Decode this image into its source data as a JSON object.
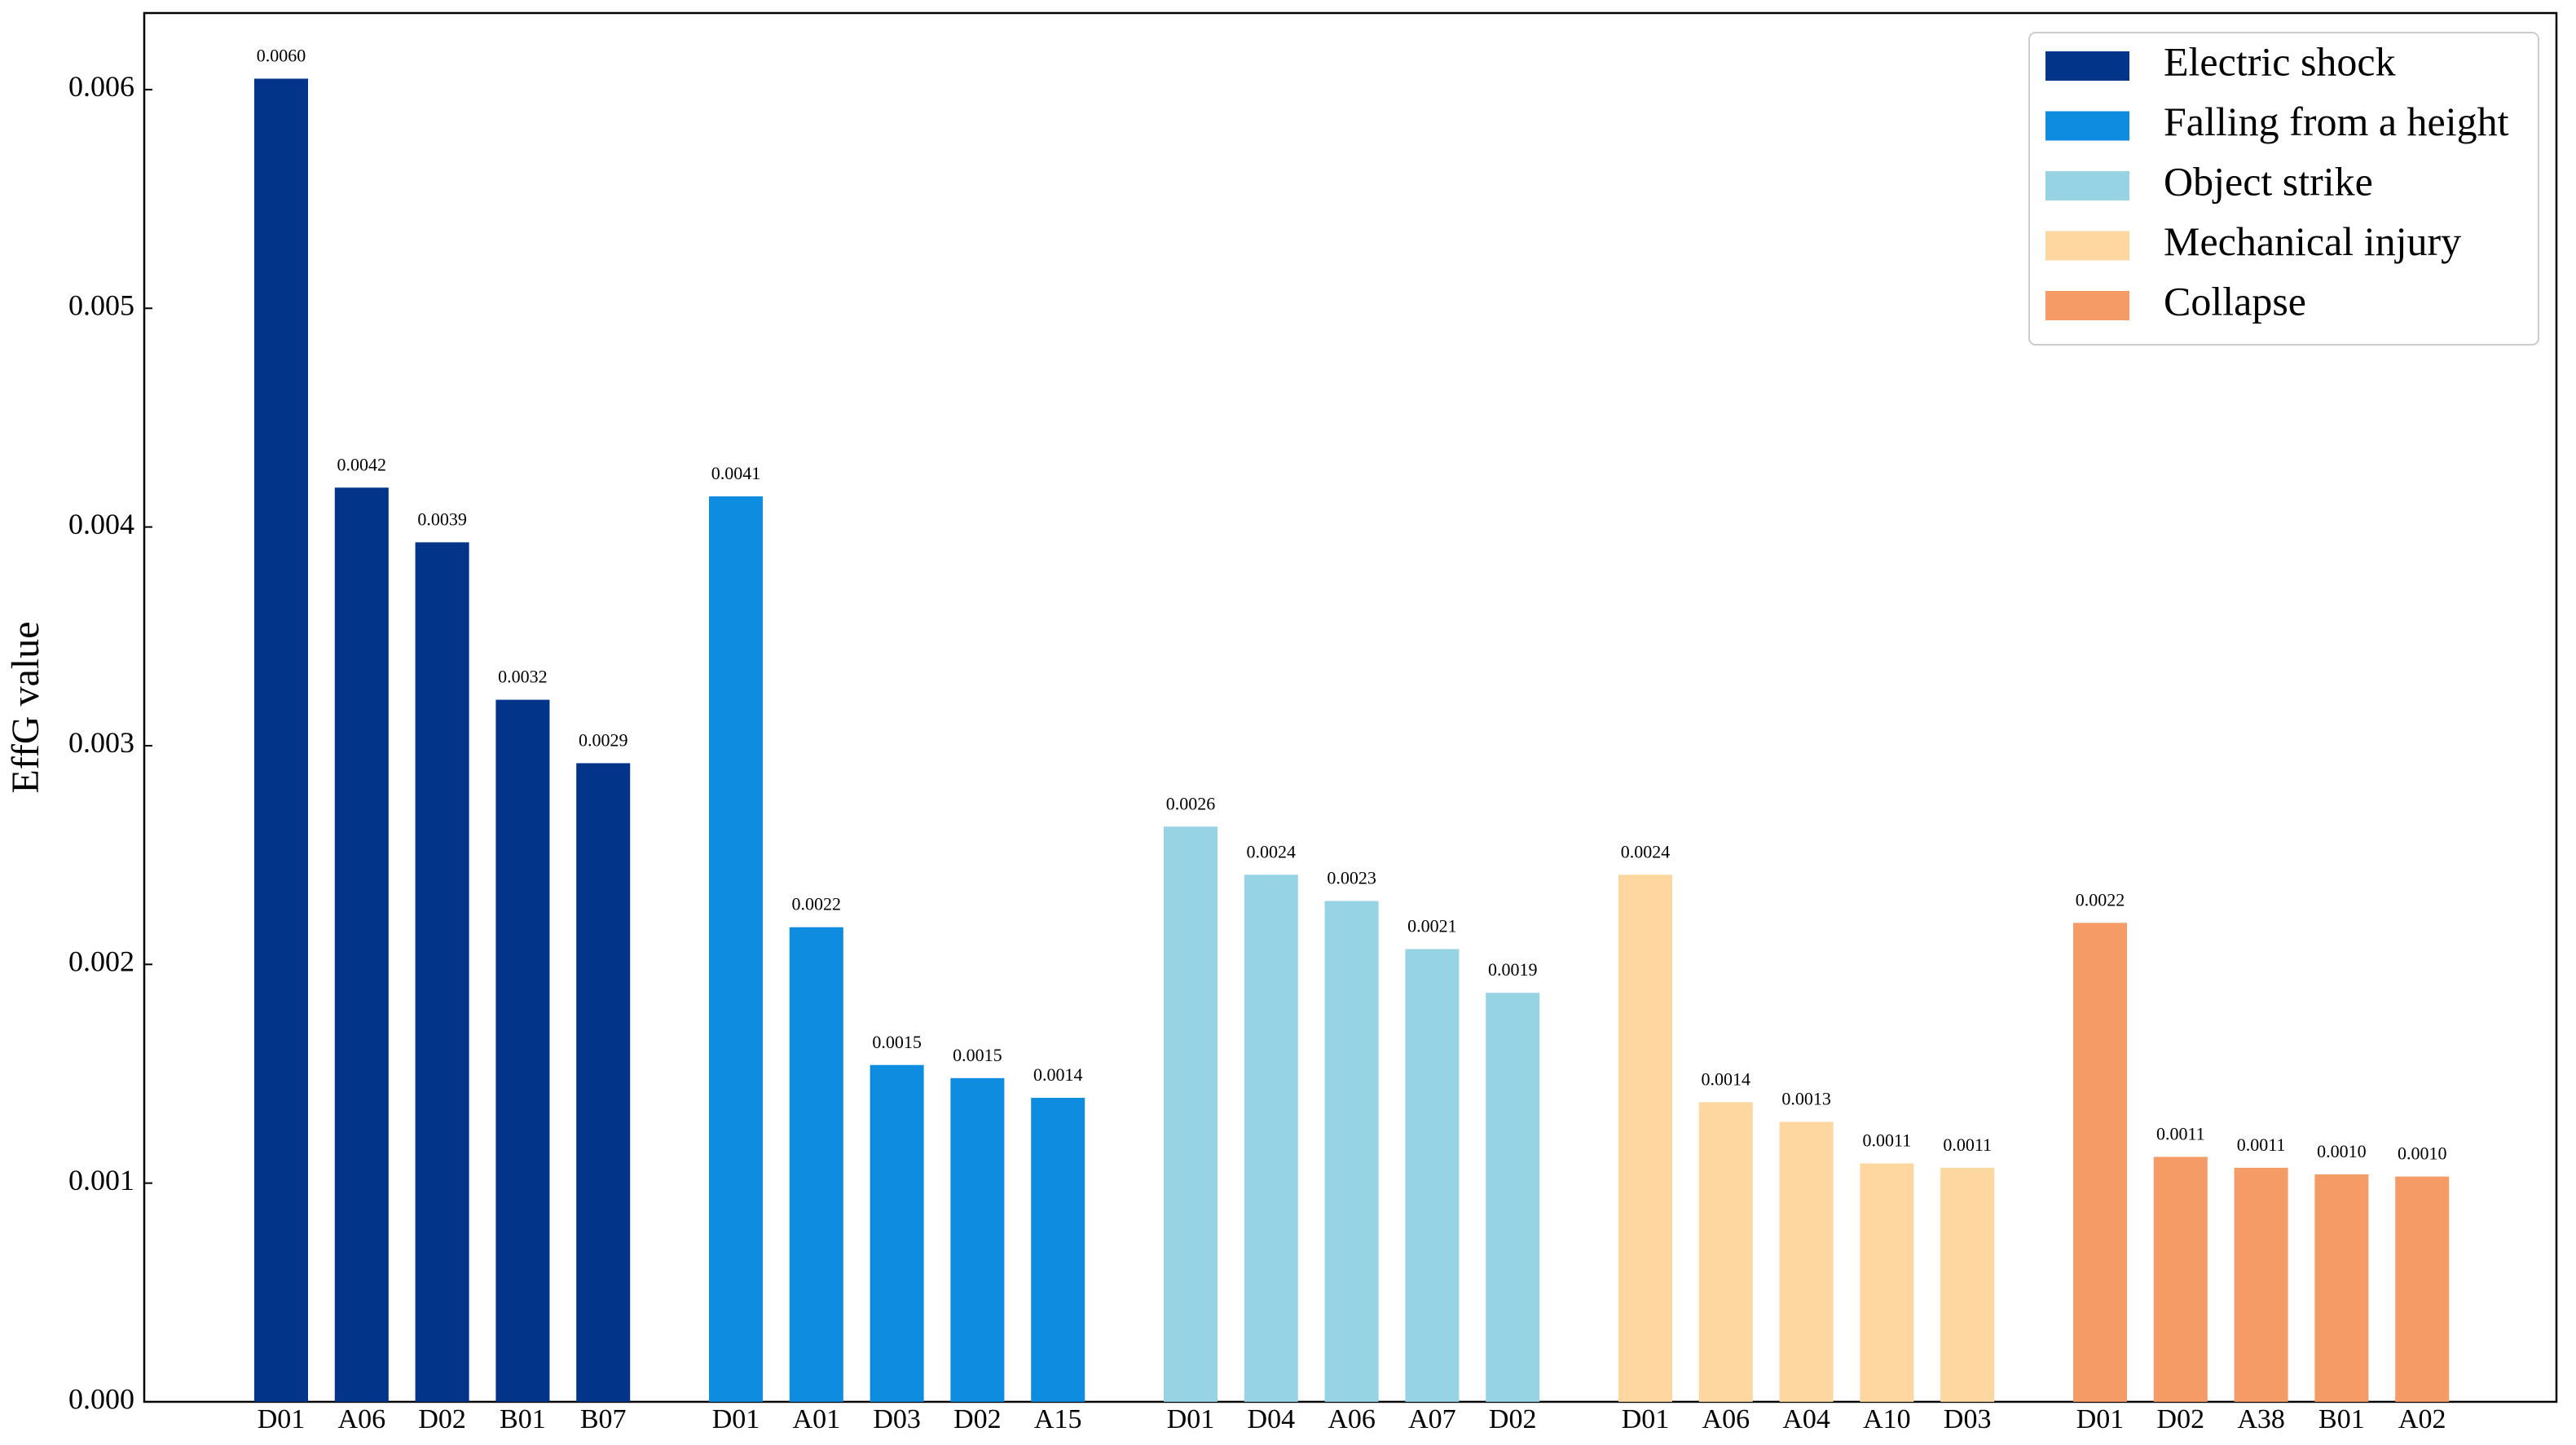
{
  "chart_data": {
    "type": "bar",
    "ylabel": "EffG value",
    "ylim": [
      0,
      0.00635
    ],
    "yticks": [
      {
        "value": 0,
        "label": "0.000"
      },
      {
        "value": 0.001,
        "label": "0.001"
      },
      {
        "value": 0.002,
        "label": "0.002"
      },
      {
        "value": 0.003,
        "label": "0.003"
      },
      {
        "value": 0.004,
        "label": "0.004"
      },
      {
        "value": 0.005,
        "label": "0.005"
      },
      {
        "value": 0.006,
        "label": "0.006"
      }
    ],
    "legend": "upper right",
    "series": [
      {
        "name": "Electric shock",
        "color": "#02348a",
        "categories": [
          "D01",
          "A06",
          "D02",
          "B01",
          "B07"
        ],
        "values": [
          0.00605,
          0.00418,
          0.00393,
          0.00321,
          0.00292
        ],
        "value_labels": [
          "0.0060",
          "0.0042",
          "0.0039",
          "0.0032",
          "0.0029"
        ]
      },
      {
        "name": "Falling from a height",
        "color": "#0e8de0",
        "categories": [
          "D01",
          "A01",
          "D03",
          "D02",
          "A15"
        ],
        "values": [
          0.00414,
          0.00217,
          0.00154,
          0.00148,
          0.00139
        ],
        "value_labels": [
          "0.0041",
          "0.0022",
          "0.0015",
          "0.0015",
          "0.0014"
        ]
      },
      {
        "name": "Object strike",
        "color": "#95d3e5",
        "categories": [
          "D01",
          "D04",
          "A06",
          "A07",
          "D02"
        ],
        "values": [
          0.00263,
          0.00241,
          0.00229,
          0.00207,
          0.00187
        ],
        "value_labels": [
          "0.0026",
          "0.0024",
          "0.0023",
          "0.0021",
          "0.0019"
        ]
      },
      {
        "name": "Mechanical injury",
        "color": "#fdd6a0",
        "categories": [
          "D01",
          "A06",
          "A04",
          "A10",
          "D03"
        ],
        "values": [
          0.00241,
          0.00137,
          0.00128,
          0.00109,
          0.00107
        ],
        "value_labels": [
          "0.0024",
          "0.0014",
          "0.0013",
          "0.0011",
          "0.0011"
        ]
      },
      {
        "name": "Collapse",
        "color": "#f59c66",
        "categories": [
          "D01",
          "D02",
          "A38",
          "B01",
          "A02"
        ],
        "values": [
          0.00219,
          0.00112,
          0.00107,
          0.00104,
          0.00103
        ],
        "value_labels": [
          "0.0022",
          "0.0011",
          "0.0011",
          "0.0010",
          "0.0010"
        ]
      }
    ]
  }
}
